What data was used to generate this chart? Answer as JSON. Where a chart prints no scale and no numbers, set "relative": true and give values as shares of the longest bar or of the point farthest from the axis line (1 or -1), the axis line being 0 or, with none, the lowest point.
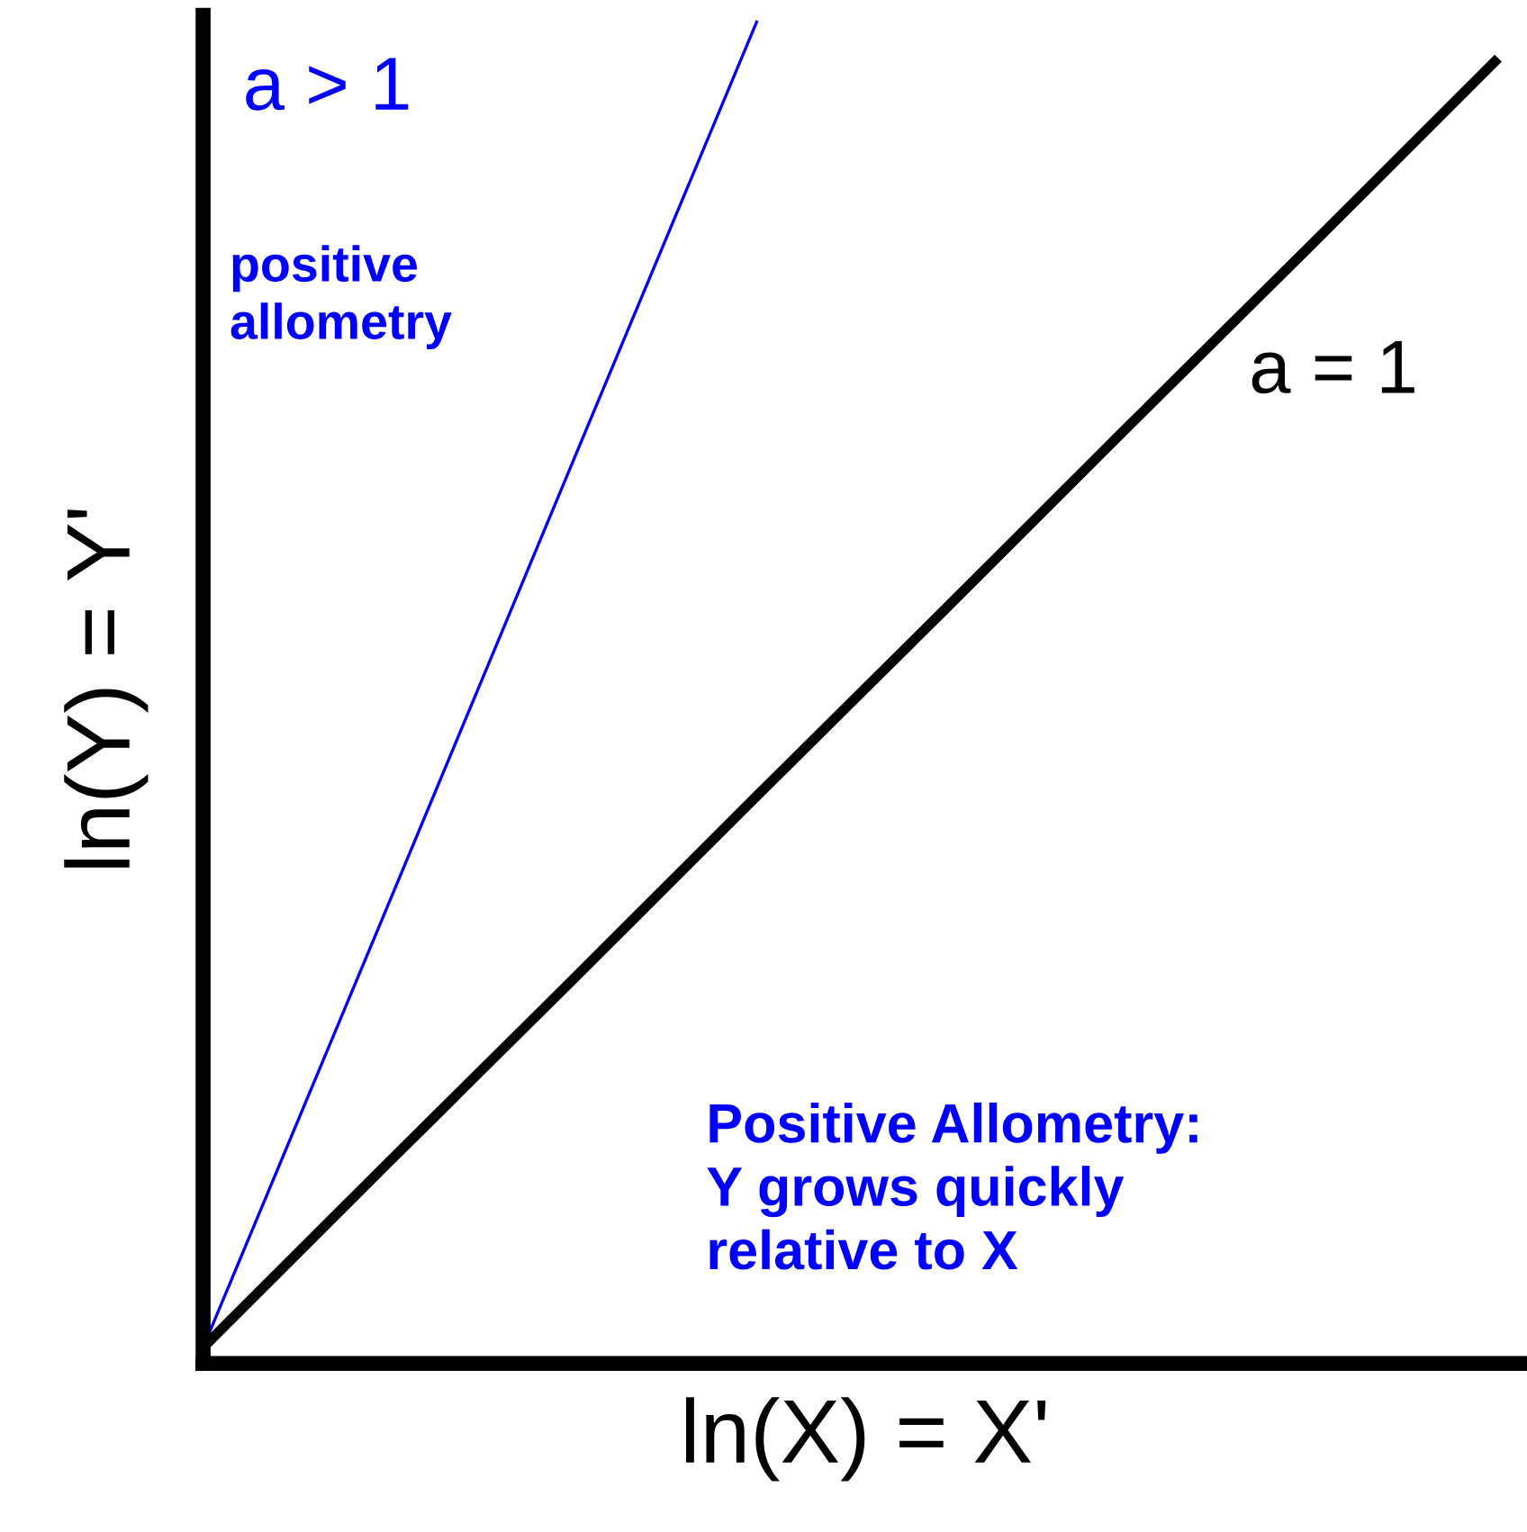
{
  "chart_data": {
    "type": "line",
    "relative": true,
    "xlabel": "ln(X) = X'",
    "ylabel": "ln(Y) = Y'",
    "categories": [
      null,
      null,
      null,
      null,
      null,
      null,
      null,
      null
    ],
    "series": [
      {
        "name": "a > 1",
        "color": "#0000ff",
        "values": [
          0,
          0.333,
          0.667,
          1,
          null,
          null,
          null,
          null
        ]
      },
      {
        "name": "a = 1",
        "color": "#000000",
        "values": [
          0,
          0.139,
          0.277,
          0.416,
          0.554,
          0.693,
          0.831,
          0.97
        ]
      }
    ],
    "annotations": [
      "positive\nallometry",
      "Positive Allometry:\nY grows quickly\nrelative to X"
    ]
  }
}
